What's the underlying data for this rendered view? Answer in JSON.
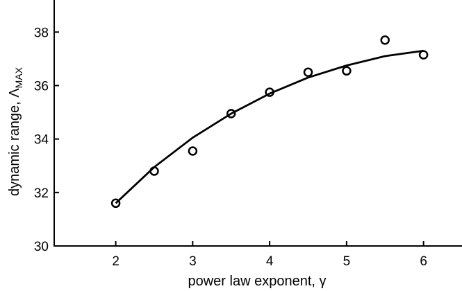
{
  "chart_data": {
    "type": "scatter",
    "title": "",
    "xlabel": "power law exponent, γ",
    "ylabel_main": "dynamic range, Λ",
    "ylabel_sub": "MAX",
    "xlim": [
      1.2,
      6.5
    ],
    "ylim": [
      30,
      39.2
    ],
    "xticks": [
      2,
      3,
      4,
      5,
      6
    ],
    "yticks": [
      30,
      32,
      34,
      36,
      38
    ],
    "grid": false,
    "series": [
      {
        "kind": "points",
        "marker": "open-circle",
        "x": [
          2,
          2.5,
          3,
          3.5,
          4,
          4.5,
          5,
          5.5,
          6
        ],
        "y": [
          31.6,
          32.8,
          33.55,
          34.95,
          35.75,
          36.5,
          36.55,
          37.7,
          37.15
        ]
      },
      {
        "kind": "line",
        "x": [
          2,
          2.5,
          3,
          3.5,
          4,
          4.5,
          5,
          5.5,
          6
        ],
        "y": [
          31.6,
          32.95,
          34.05,
          34.95,
          35.7,
          36.3,
          36.75,
          37.1,
          37.3
        ]
      }
    ]
  }
}
